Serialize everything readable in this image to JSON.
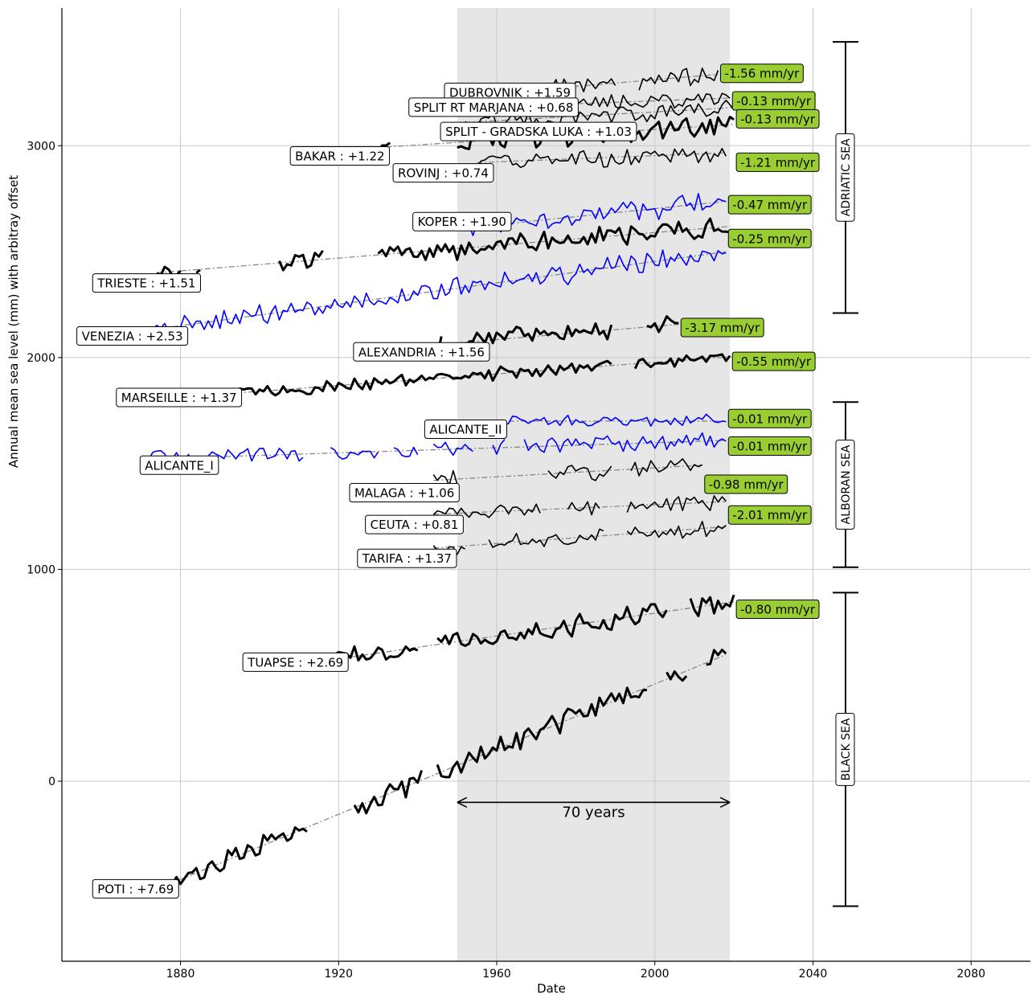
{
  "chart_data": {
    "type": "line",
    "xlabel": "Date",
    "ylabel": "Annual mean sea level (mm) with arbitray offset",
    "xlim": [
      1850,
      2095
    ],
    "ylim": [
      -850,
      3650
    ],
    "x_ticks": [
      "1880",
      "1920",
      "1960",
      "2000",
      "2040",
      "2080"
    ],
    "y_ticks": [
      "0",
      "1000",
      "2000",
      "3000"
    ],
    "grid": true,
    "shaded_period": [
      1950,
      2019
    ],
    "span_annotation": {
      "label": "70 years",
      "x": [
        1950,
        2019
      ],
      "y": -100
    },
    "colors": {
      "black": "#000000",
      "blue": "#0000ff",
      "trend": "#888888",
      "rate_box": "#9acd32",
      "shade": "#e6e6e6"
    },
    "stations": [
      {
        "name": "DUBROVNIK : +1.59",
        "rate": "-1.56 mm/yr",
        "color": "black",
        "width": 1.6,
        "label_year": 1948,
        "label_y": 3250,
        "rate_y": 3340,
        "start": 1955,
        "end": 2016,
        "base": 3240,
        "slope": 1.59,
        "amp": 50,
        "gaps": [
          [
            1991,
            1995
          ]
        ]
      },
      {
        "name": "SPLIT RT MARJANA : +0.68",
        "rate": "-0.13 mm/yr",
        "color": "black",
        "width": 1.6,
        "label_year": 1939,
        "label_y": 3180,
        "rate_y": 3210,
        "start": 1953,
        "end": 2019,
        "base": 3180,
        "slope": 0.68,
        "amp": 45,
        "gaps": []
      },
      {
        "name": "SPLIT - GRADSKA LUKA : +1.03",
        "rate": "-0.13 mm/yr",
        "color": "black",
        "width": 1.6,
        "label_year": 1947,
        "label_y": 3065,
        "rate_y": 3125,
        "start": 1952,
        "end": 2020,
        "base": 3110,
        "slope": 1.03,
        "amp": 45,
        "gaps": []
      },
      {
        "name": "BAKAR : +1.22",
        "rate": "-1.21 mm/yr",
        "color": "black",
        "width": 3.0,
        "label_year": 1909,
        "label_y": 2950,
        "rate_y": 2920,
        "start": 1929,
        "end": 2020,
        "base": 2990,
        "slope": 1.22,
        "amp": 60,
        "gaps": [
          [
            1934,
            1949
          ]
        ]
      },
      {
        "name": "ROVINJ : +0.74",
        "rate": "-0.47 mm/yr",
        "color": "black",
        "width": 1.6,
        "label_year": 1935,
        "label_y": 2870,
        "rate_y": 2720,
        "start": 1955,
        "end": 2018,
        "base": 2920,
        "slope": 0.74,
        "amp": 45,
        "gaps": []
      },
      {
        "name": "KOPER : +1.90",
        "rate": "-0.25 mm/yr",
        "color": "blue",
        "width": 1.6,
        "label_year": 1940,
        "label_y": 2640,
        "rate_y": 2560,
        "start": 1951,
        "end": 2018,
        "base": 2610,
        "slope": 1.9,
        "amp": 55,
        "gaps": []
      },
      {
        "name": "TRIESTE : +1.51",
        "rate": "",
        "color": "black",
        "width": 3.0,
        "label_year": 1859,
        "label_y": 2350,
        "rate_y": 0,
        "start": 1874,
        "end": 2019,
        "base": 2400,
        "slope": 1.51,
        "amp": 55,
        "gaps": [
          [
            1881,
            1883
          ],
          [
            1886,
            1904
          ],
          [
            1917,
            1929
          ]
        ]
      },
      {
        "name": "VENEZIA : +2.53",
        "rate": "",
        "color": "blue",
        "width": 1.6,
        "label_year": 1855,
        "label_y": 2100,
        "rate_y": 0,
        "start": 1872,
        "end": 2018,
        "base": 2130,
        "slope": 2.53,
        "amp": 60,
        "gaps": []
      },
      {
        "name": "ALEXANDRIA : +1.56",
        "rate": "-3.17 mm/yr",
        "color": "black",
        "width": 3.0,
        "label_year": 1925,
        "label_y": 2025,
        "rate_y": 2140,
        "start": 1944,
        "end": 2006,
        "base": 2060,
        "slope": 1.56,
        "amp": 55,
        "gaps": [
          [
            1947,
            1950
          ],
          [
            1990,
            1997
          ]
        ]
      },
      {
        "name": "MARSEILLE : +1.37",
        "rate": "-0.55 mm/yr",
        "color": "black",
        "width": 3.0,
        "label_year": 1865,
        "label_y": 1810,
        "rate_y": 1980,
        "start": 1885,
        "end": 2019,
        "base": 1820,
        "slope": 1.37,
        "amp": 35,
        "gaps": [
          [
            1990,
            1994
          ]
        ]
      },
      {
        "name": "ALICANTE_II",
        "rate": "-0.01 mm/yr",
        "color": "blue",
        "width": 1.6,
        "label_year": 1943,
        "label_y": 1660,
        "rate_y": 1710,
        "start": 1960,
        "end": 2018,
        "base": 1700,
        "slope": 0.0,
        "amp": 35,
        "gaps": []
      },
      {
        "name": "ALICANTE_I",
        "rate": "-0.01 mm/yr",
        "color": "blue",
        "width": 1.6,
        "label_year": 1871,
        "label_y": 1490,
        "rate_y": 1580,
        "start": 1870,
        "end": 2018,
        "base": 1520,
        "slope": 0.6,
        "amp": 45,
        "gaps": [
          [
            1912,
            1917
          ],
          [
            1931,
            1933
          ],
          [
            1941,
            1943
          ],
          [
            1955,
            1958
          ],
          [
            1963,
            1966
          ]
        ]
      },
      {
        "name": "MALAGA : +1.06",
        "rate": "-0.98 mm/yr",
        "color": "black",
        "width": 1.6,
        "label_year": 1924,
        "label_y": 1360,
        "rate_y": 1400,
        "start": 1944,
        "end": 2012,
        "base": 1420,
        "slope": 1.06,
        "amp": 45,
        "gaps": [
          [
            1951,
            1956
          ],
          [
            1958,
            1967
          ],
          [
            1969,
            1972
          ],
          [
            1990,
            1993
          ]
        ]
      },
      {
        "name": "CEUTA : +0.81",
        "rate": "-2.01 mm/yr",
        "color": "black",
        "width": 1.6,
        "label_year": 1928,
        "label_y": 1210,
        "rate_y": 1255,
        "start": 1944,
        "end": 2018,
        "base": 1260,
        "slope": 0.81,
        "amp": 40,
        "gaps": [
          [
            1972,
            1977
          ],
          [
            1987,
            1992
          ]
        ]
      },
      {
        "name": "TARIFA : +1.37",
        "rate": "",
        "color": "black",
        "width": 1.6,
        "label_year": 1926,
        "label_y": 1050,
        "rate_y": 0,
        "start": 1944,
        "end": 2018,
        "base": 1100,
        "slope": 1.37,
        "amp": 45,
        "gaps": [
          [
            1953,
            1957
          ],
          [
            1988,
            1992
          ]
        ]
      },
      {
        "name": "TUAPSE : +2.69",
        "rate": "-0.80 mm/yr",
        "color": "black",
        "width": 3.0,
        "label_year": 1897,
        "label_y": 560,
        "rate_y": 810,
        "start": 1917,
        "end": 2020,
        "base": 570,
        "slope": 2.69,
        "amp": 60,
        "gaps": [
          [
            1941,
            1944
          ],
          [
            2004,
            2008
          ]
        ]
      },
      {
        "name": "POTI : +7.69",
        "rate": "",
        "color": "black",
        "width": 3.0,
        "label_year": 1859,
        "label_y": -510,
        "rate_y": 0,
        "start": 1874,
        "end": 2018,
        "base": -510,
        "slope": 7.69,
        "amp": 55,
        "gaps": [
          [
            1913,
            1923
          ],
          [
            1942,
            1944
          ],
          [
            1999,
            2002
          ],
          [
            2009,
            2012
          ]
        ]
      }
    ],
    "regions": [
      {
        "name": "ADRIATIC SEA",
        "y_top": 3490,
        "y_bottom": 2210
      },
      {
        "name": "ALBORAN SEA",
        "y_top": 1790,
        "y_bottom": 1010
      },
      {
        "name": "BLACK SEA",
        "y_top": 890,
        "y_bottom": -590
      }
    ]
  }
}
